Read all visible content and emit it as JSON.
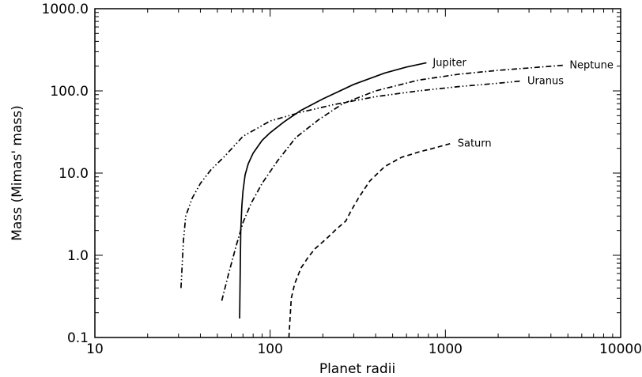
{
  "chart_data": {
    "type": "line",
    "xlabel": "Planet radii",
    "ylabel": "Mass (Mimas' mass)",
    "x_scale": "log",
    "y_scale": "log",
    "xlim": [
      10,
      10000
    ],
    "ylim": [
      0.1,
      1000
    ],
    "grid": false,
    "legend": "none",
    "x_ticks": [
      {
        "value": 10,
        "label": "10"
      },
      {
        "value": 100,
        "label": "100"
      },
      {
        "value": 1000,
        "label": "1000"
      },
      {
        "value": 10000,
        "label": "10000"
      }
    ],
    "y_ticks": [
      {
        "value": 0.1,
        "label": "0.1"
      },
      {
        "value": 1,
        "label": "1.0"
      },
      {
        "value": 10,
        "label": "10.0"
      },
      {
        "value": 100,
        "label": "100.0"
      },
      {
        "value": 1000,
        "label": "1000.0"
      }
    ],
    "series": [
      {
        "name": "Jupiter",
        "style": "solid",
        "x": [
          67,
          67.5,
          68,
          69,
          70,
          72,
          75,
          80,
          90,
          100,
          120,
          150,
          200,
          300,
          450,
          600,
          780
        ],
        "y": [
          0.17,
          0.6,
          2,
          4,
          6,
          9.5,
          13,
          17.5,
          25,
          31,
          42,
          58,
          80,
          120,
          165,
          195,
          220
        ]
      },
      {
        "name": "Saturn",
        "style": "dashed",
        "x": [
          128,
          132,
          138,
          150,
          165,
          180,
          210,
          240,
          270,
          290,
          320,
          370,
          450,
          560,
          700,
          850,
          1080
        ],
        "y": [
          0.1,
          0.3,
          0.45,
          0.7,
          0.95,
          1.2,
          1.6,
          2.1,
          2.6,
          3.5,
          5,
          8,
          12,
          15.5,
          18,
          20,
          23
        ]
      },
      {
        "name": "Uranus",
        "style": "dash-dot-dot",
        "x": [
          31,
          32,
          33,
          36,
          40,
          46,
          55,
          70,
          100,
          150,
          230,
          400,
          700,
          1200,
          2000,
          2700
        ],
        "y": [
          0.4,
          1.5,
          3,
          5,
          7.5,
          11,
          16,
          28,
          43,
          55,
          68,
          85,
          100,
          113,
          124,
          132
        ]
      },
      {
        "name": "Neptune",
        "style": "dash-dot",
        "x": [
          53,
          58,
          64,
          70,
          78,
          90,
          110,
          140,
          190,
          260,
          400,
          700,
          1200,
          2000,
          3200,
          4700
        ],
        "y": [
          0.28,
          0.6,
          1.3,
          2.5,
          4.3,
          7.5,
          14,
          27,
          45,
          70,
          100,
          135,
          160,
          178,
          192,
          205
        ]
      }
    ]
  }
}
